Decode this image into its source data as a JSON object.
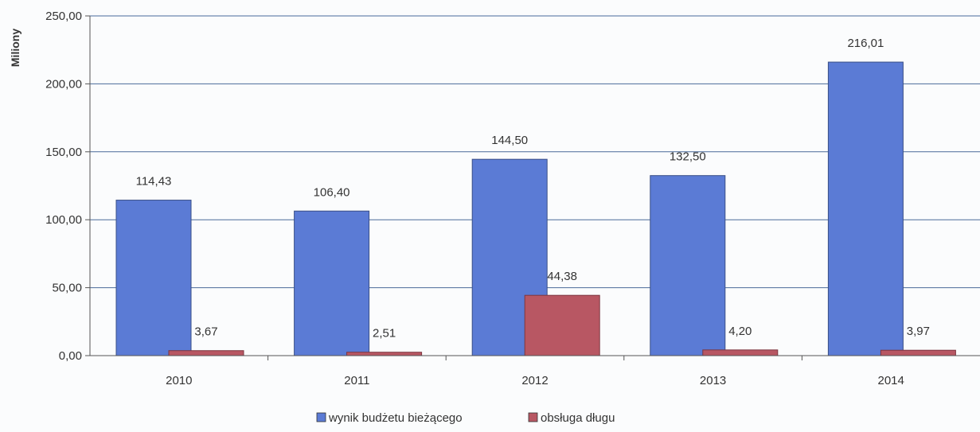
{
  "chart_data": {
    "type": "bar",
    "categories": [
      "2010",
      "2011",
      "2012",
      "2013",
      "2014"
    ],
    "series": [
      {
        "name": "wynik budżetu bieżącego",
        "values": [
          114.43,
          106.4,
          144.5,
          132.5,
          216.01
        ],
        "labels": [
          "114,43",
          "106,40",
          "144,50",
          "132,50",
          "216,01"
        ],
        "color": "#5b7bd5"
      },
      {
        "name": "obsługa długu",
        "values": [
          3.67,
          2.51,
          44.38,
          4.2,
          3.97
        ],
        "labels": [
          "3,67",
          "2,51",
          "44,38",
          "4,20",
          "3,97"
        ],
        "color": "#b85763"
      }
    ],
    "ylabel": "Miliony",
    "ylim": [
      0,
      250
    ],
    "yticks": [
      0,
      50,
      100,
      150,
      200,
      250
    ],
    "ytick_labels": [
      "0,00",
      "50,00",
      "100,00",
      "150,00",
      "200,00",
      "250,00"
    ],
    "grid": true,
    "legend_position": "bottom"
  }
}
